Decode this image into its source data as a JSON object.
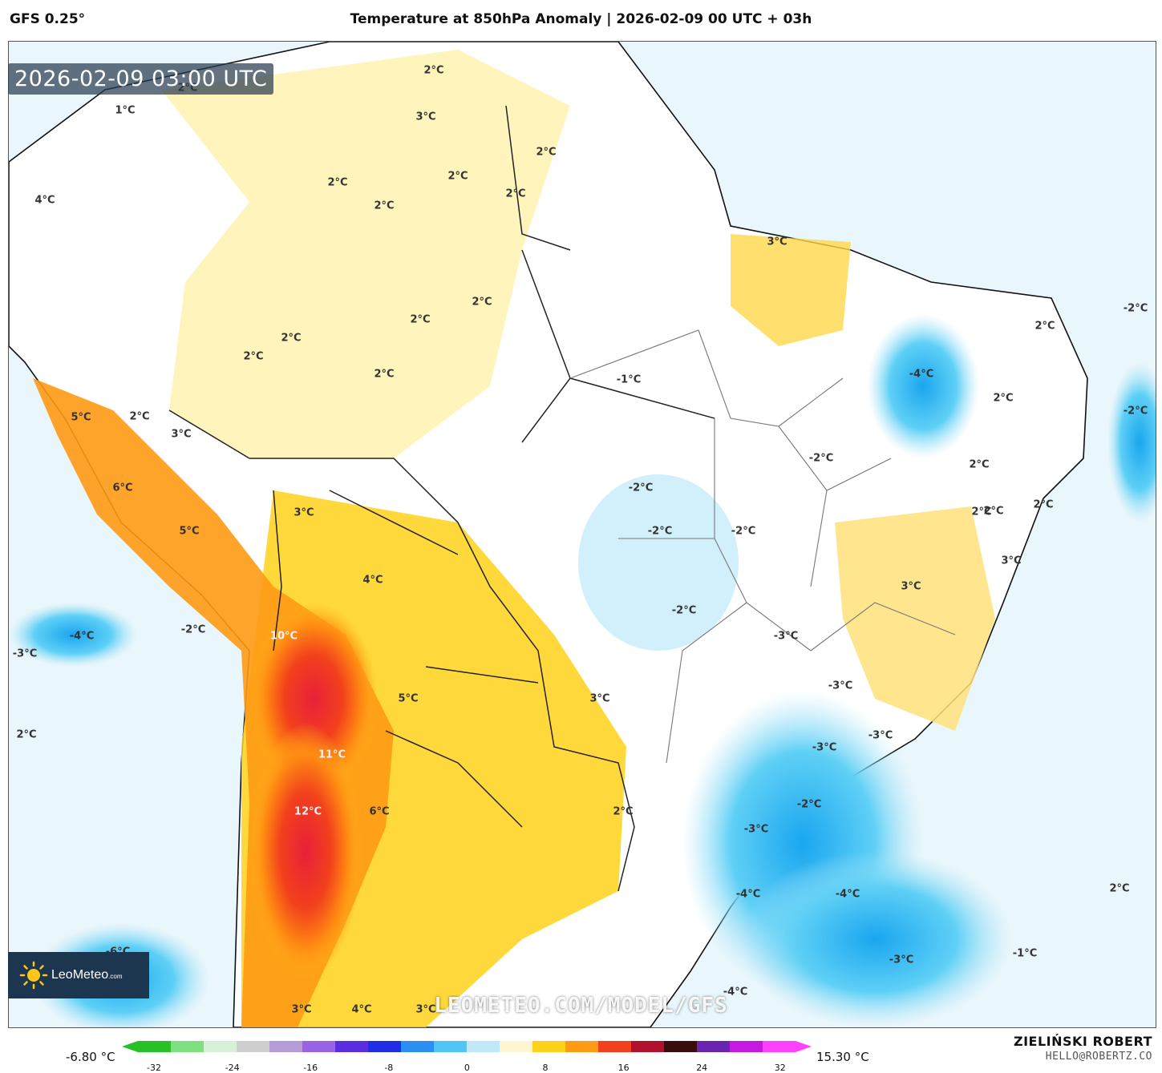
{
  "header": {
    "model": "GFS 0.25°",
    "title": "Temperature at 850hPa Anomaly | 2026-02-09 00 UTC + 03h"
  },
  "timestamp": "2026-02-09 03:00 UTC",
  "watermark": "LEOMETEO.COM/MODEL/GFS",
  "logo": {
    "name": "LeoMeteo",
    "suffix": ".com"
  },
  "map_labels": [
    "2°C",
    "1°C",
    "3°C",
    "2°C",
    "2°C",
    "2°C",
    "2°C",
    "4°C",
    "2°C",
    "2°C",
    "3°C",
    "2°C",
    "2°C",
    "2°C",
    "2°C",
    "2°C",
    "-1°C",
    "5°C",
    "2°C",
    "3°C",
    "6°C",
    "5°C",
    "-2°C",
    "-2°C",
    "-2°C",
    "-2°C",
    "2°C",
    "-4°C",
    "2°C",
    "-2°C",
    "2°C",
    "2°C",
    "2°C",
    "3°C",
    "4°C",
    "-2°C",
    "-2°C",
    "-4°C",
    "-3°C",
    "10°C",
    "-2°C",
    "3°C",
    "3°C",
    "-3°C",
    "-3°C",
    "5°C",
    "3°C",
    "2°C",
    "-3°C",
    "11°C",
    "-3°C",
    "2°C",
    "12°C",
    "6°C",
    "-2°C",
    "2°C",
    "-3°C",
    "-4°C",
    "-4°C",
    "2°C",
    "-3°C",
    "-1°C",
    "-4°C",
    "3°C",
    "4°C",
    "3°C",
    "-6°C"
  ],
  "scale": {
    "min_label": "-6.80 °C",
    "max_label": "15.30 °C",
    "ticks": [
      "-32",
      "-24",
      "-16",
      "-8",
      "0",
      "8",
      "16",
      "24",
      "32"
    ],
    "colors": [
      "#27c027",
      "#7ee07e",
      "#d8efd8",
      "#cfcfcf",
      "#b59cd8",
      "#9a62e6",
      "#5a2ee0",
      "#1e2ee8",
      "#2a8ef2",
      "#4fc6f5",
      "#bfe8f8",
      "#fff6cf",
      "#ffd21a",
      "#ff9a14",
      "#f2401c",
      "#b0102c",
      "#3a0c0c",
      "#6b24b0",
      "#c51ae0",
      "#ff40ff"
    ]
  },
  "author": {
    "name": "ZIELIŃSKI ROBERT",
    "email": "HELLO@ROBERTZ.CO"
  }
}
